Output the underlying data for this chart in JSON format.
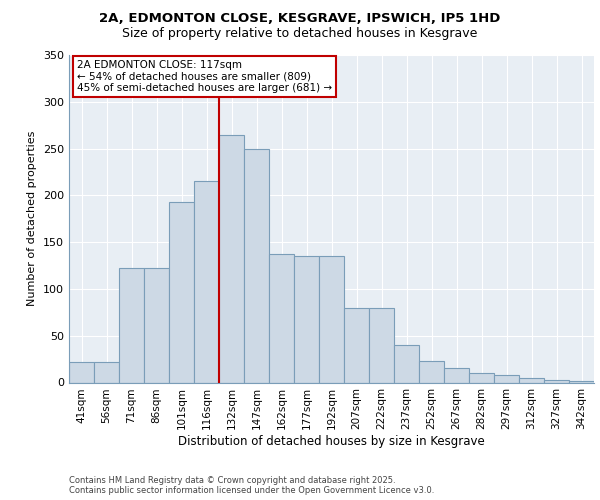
{
  "title1": "2A, EDMONTON CLOSE, KESGRAVE, IPSWICH, IP5 1HD",
  "title2": "Size of property relative to detached houses in Kesgrave",
  "xlabel": "Distribution of detached houses by size in Kesgrave",
  "ylabel": "Number of detached properties",
  "categories": [
    "41sqm",
    "56sqm",
    "71sqm",
    "86sqm",
    "101sqm",
    "116sqm",
    "132sqm",
    "147sqm",
    "162sqm",
    "177sqm",
    "192sqm",
    "207sqm",
    "222sqm",
    "237sqm",
    "252sqm",
    "267sqm",
    "282sqm",
    "297sqm",
    "312sqm",
    "327sqm",
    "342sqm"
  ],
  "values": [
    22,
    22,
    122,
    122,
    193,
    215,
    265,
    250,
    137,
    135,
    135,
    80,
    80,
    40,
    23,
    15,
    10,
    8,
    5,
    3,
    2
  ],
  "bar_color": "#cdd9e5",
  "bar_edge_color": "#7a9db8",
  "vline_x_index": 5.5,
  "vline_color": "#c00000",
  "ylim": [
    0,
    350
  ],
  "yticks": [
    0,
    50,
    100,
    150,
    200,
    250,
    300,
    350
  ],
  "annotation_text": "2A EDMONTON CLOSE: 117sqm\n← 54% of detached houses are smaller (809)\n45% of semi-detached houses are larger (681) →",
  "annotation_box_color": "#ffffff",
  "annotation_edge_color": "#c00000",
  "footer_text": "Contains HM Land Registry data © Crown copyright and database right 2025.\nContains public sector information licensed under the Open Government Licence v3.0.",
  "background_color": "#e8eef4",
  "fig_background": "#ffffff",
  "grid_color": "#ffffff",
  "spine_color": "#7a9db8"
}
